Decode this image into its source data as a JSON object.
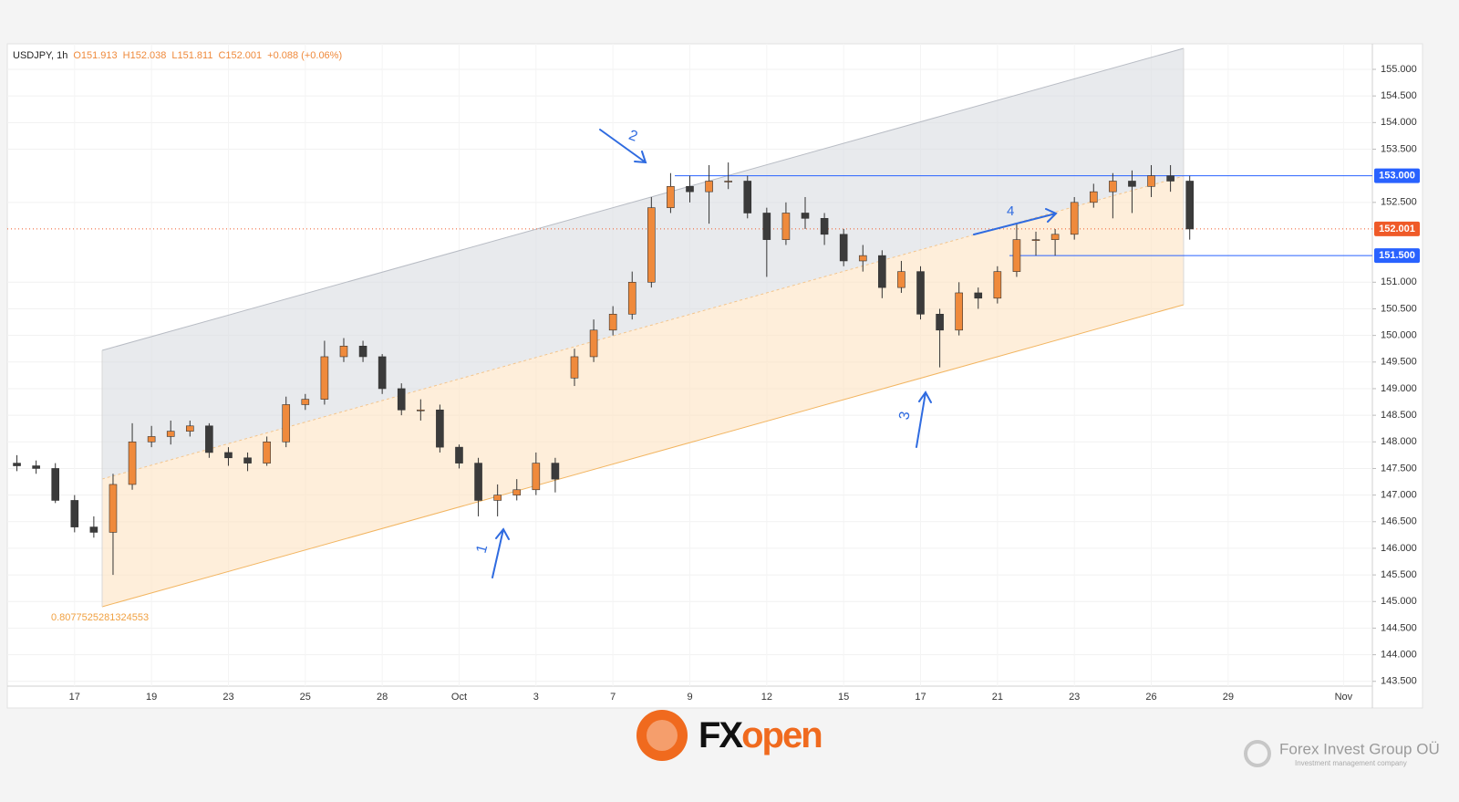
{
  "chart_data": {
    "type": "candlestick",
    "header": [
      "USDJPY, 1h",
      "O151.913",
      "H152.038",
      "L151.811",
      "C152.001",
      "+0.088 (+0.06%)"
    ],
    "categories": [
      null,
      null,
      null,
      "17",
      null,
      null,
      null,
      "19",
      null,
      null,
      null,
      "23",
      null,
      null,
      null,
      "25",
      null,
      null,
      null,
      "28",
      null,
      null,
      null,
      "Oct",
      null,
      null,
      null,
      "3",
      null,
      null,
      null,
      "7",
      null,
      null,
      null,
      "9",
      null,
      null,
      null,
      "12",
      null,
      null,
      null,
      "15",
      null,
      null,
      null,
      "17",
      null,
      null,
      null,
      "21",
      null,
      null,
      null,
      "23",
      null,
      null,
      null,
      "26",
      null,
      null,
      null,
      "29",
      null,
      null,
      null,
      null,
      null,
      "Nov",
      null
    ],
    "open": [
      147.6,
      147.55,
      147.5,
      146.9,
      146.4,
      146.3,
      147.2,
      148.0,
      148.1,
      148.2,
      148.3,
      147.8,
      147.7,
      147.6,
      148.0,
      148.7,
      148.8,
      149.6,
      149.8,
      149.6,
      149.0,
      148.6,
      148.6,
      147.9,
      147.6,
      146.9,
      147.0,
      147.1,
      147.6,
      149.2,
      149.6,
      150.1,
      150.4,
      151.0,
      152.4,
      152.8,
      152.7,
      152.9,
      152.9,
      152.3,
      151.8,
      152.3,
      152.2,
      151.9,
      151.4,
      151.5,
      150.9,
      151.2,
      150.4,
      150.1,
      150.8,
      150.7,
      151.2,
      151.8,
      151.8,
      151.9,
      152.5,
      152.7,
      152.9,
      152.8,
      153.0,
      152.9,
      null,
      null,
      null,
      null,
      null,
      null,
      null,
      null,
      null
    ],
    "high": [
      147.75,
      147.65,
      147.6,
      147.0,
      146.6,
      147.4,
      148.35,
      148.3,
      148.4,
      148.4,
      148.35,
      147.9,
      147.8,
      148.1,
      148.85,
      148.9,
      149.9,
      149.95,
      149.9,
      149.65,
      149.1,
      148.8,
      148.7,
      147.95,
      147.7,
      147.2,
      147.3,
      147.8,
      147.7,
      149.75,
      150.3,
      150.55,
      151.2,
      152.6,
      153.05,
      153.0,
      153.2,
      153.25,
      153.0,
      152.4,
      152.5,
      152.6,
      152.3,
      152.0,
      151.7,
      151.6,
      151.4,
      151.3,
      150.5,
      151.0,
      150.9,
      151.3,
      152.1,
      151.95,
      152.0,
      152.6,
      152.85,
      153.05,
      153.1,
      153.2,
      153.2,
      153.0,
      null,
      null,
      null,
      null,
      null,
      null,
      null,
      null,
      null
    ],
    "low": [
      147.45,
      147.4,
      146.85,
      146.3,
      146.2,
      145.5,
      147.1,
      147.9,
      147.95,
      148.1,
      147.7,
      147.55,
      147.45,
      147.55,
      147.9,
      148.6,
      148.7,
      149.5,
      149.5,
      148.9,
      148.5,
      148.4,
      147.8,
      147.5,
      146.6,
      146.6,
      146.9,
      147.0,
      147.05,
      149.05,
      149.5,
      150.0,
      150.3,
      150.9,
      152.3,
      152.5,
      152.1,
      152.75,
      152.2,
      151.1,
      151.7,
      152.0,
      151.7,
      151.3,
      151.2,
      150.7,
      150.8,
      150.3,
      149.4,
      150.0,
      150.5,
      150.6,
      151.1,
      151.5,
      151.5,
      151.8,
      152.4,
      152.2,
      152.3,
      152.6,
      152.7,
      151.8,
      null,
      null,
      null,
      null,
      null,
      null,
      null,
      null,
      null
    ],
    "close": [
      147.55,
      147.5,
      146.9,
      146.4,
      146.3,
      147.2,
      148.0,
      148.1,
      148.2,
      148.3,
      147.8,
      147.7,
      147.6,
      148.0,
      148.7,
      148.8,
      149.6,
      149.8,
      149.6,
      149.0,
      148.6,
      148.6,
      147.9,
      147.6,
      146.9,
      147.0,
      147.1,
      147.6,
      147.3,
      149.6,
      150.1,
      150.4,
      151.0,
      152.4,
      152.8,
      152.7,
      152.9,
      152.9,
      152.3,
      151.8,
      152.3,
      152.2,
      151.9,
      151.4,
      151.5,
      150.9,
      151.2,
      150.4,
      150.1,
      150.8,
      150.7,
      151.2,
      151.8,
      151.8,
      151.9,
      152.5,
      152.7,
      152.9,
      152.8,
      153.0,
      152.9,
      152.0,
      null,
      null,
      null,
      null,
      null,
      null,
      null,
      null,
      null
    ],
    "up_color": "#ef8a3c",
    "down_color": "#3b3b3b",
    "ylim": [
      143.41,
      155.48
    ],
    "yticks": [
      {
        "value": 143.5,
        "label": "143.500"
      },
      {
        "value": 144,
        "label": "144.000"
      },
      {
        "value": 144.5,
        "label": "144.500"
      },
      {
        "value": 145,
        "label": "145.000"
      },
      {
        "value": 145.5,
        "label": "145.500"
      },
      {
        "value": 146,
        "label": "146.000"
      },
      {
        "value": 146.5,
        "label": "146.500"
      },
      {
        "value": 147,
        "label": "147.000"
      },
      {
        "value": 147.5,
        "label": "147.500"
      },
      {
        "value": 148,
        "label": "148.000"
      },
      {
        "value": 148.5,
        "label": "148.500"
      },
      {
        "value": 149,
        "label": "149.000"
      },
      {
        "value": 149.5,
        "label": "149.500"
      },
      {
        "value": 150,
        "label": "150.000"
      },
      {
        "value": 150.5,
        "label": "150.500"
      },
      {
        "value": 151,
        "label": "151.000"
      },
      {
        "value": 152.5,
        "label": "152.500"
      },
      {
        "value": 153.5,
        "label": "153.500"
      },
      {
        "value": 154,
        "label": "154.000"
      },
      {
        "value": 154.5,
        "label": "154.500"
      },
      {
        "value": 155,
        "label": "155.000"
      }
    ],
    "grid": true,
    "price_lines": [
      {
        "value": 153,
        "label": "153.000",
        "color": "#2962ff"
      },
      {
        "value": 151.5,
        "label": "151.500",
        "color": "#2962ff"
      }
    ],
    "last_price": {
      "value": 152.001,
      "label": "152.001",
      "color": "#ef5a28"
    },
    "channel_label": "0.8077525281324553",
    "annotations": [
      {
        "text": "1"
      },
      {
        "text": "2"
      },
      {
        "text": "3"
      },
      {
        "text": "4"
      }
    ]
  },
  "footer": {
    "brand": {
      "prefix": "FX",
      "suffix": "open"
    },
    "partner": "Forex Invest Group OÜ",
    "partner_tagline": "Investment management company"
  }
}
